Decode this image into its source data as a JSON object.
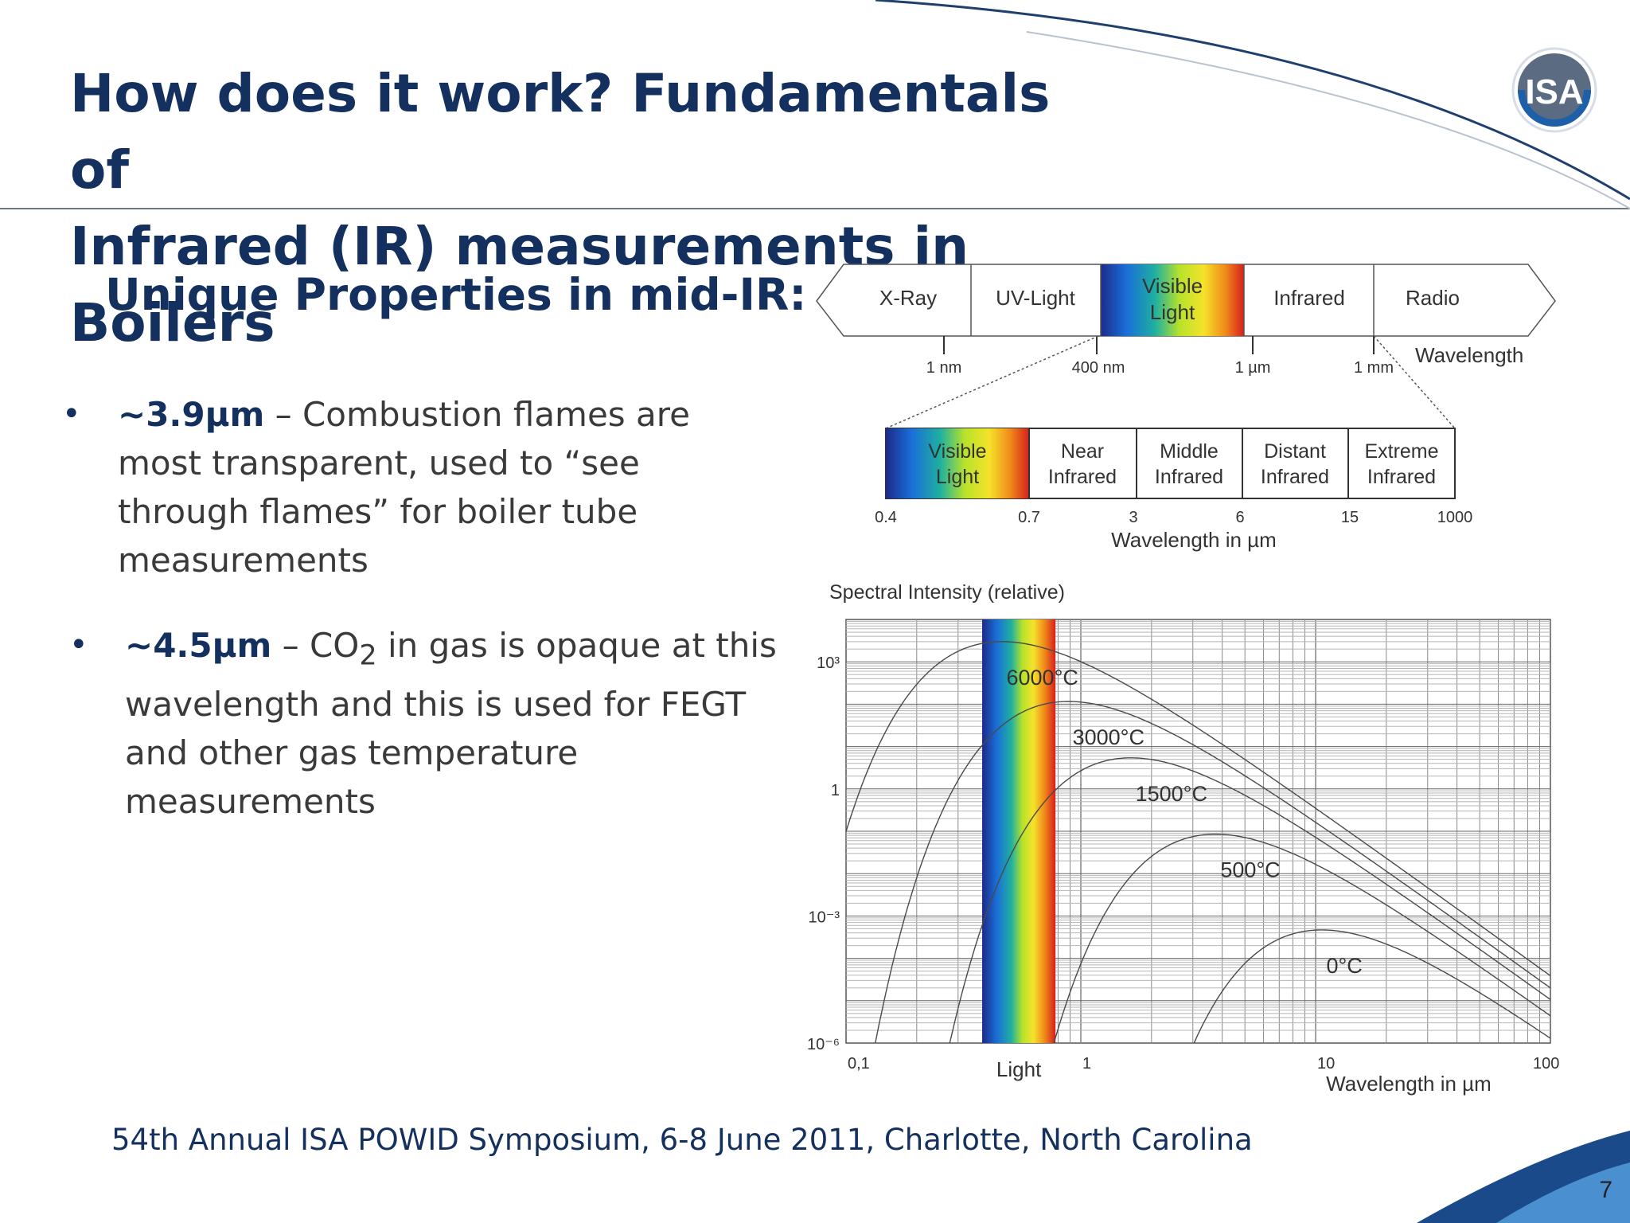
{
  "title_line1": "How does it work?  Fundamentals of",
  "title_line2": "Infrared (IR) measurements in Boilers",
  "logo": {
    "text": "ISA",
    "name": "isa-logo"
  },
  "subtitle": "Unique Properties in mid-IR:",
  "bullets": [
    {
      "marker": "•",
      "bold": "~3.9µm",
      "text": " – Combustion flames are most transparent, used to “see through flames” for boiler tube measurements"
    },
    {
      "marker": "•",
      "bold": "~4.5µm",
      "text_pre": " – CO",
      "sub": "2",
      "text_post": " in gas is opaque at this wavelength and this is used for FEGT and other gas temperature measurements"
    }
  ],
  "spectrum": {
    "bands": [
      "X-Ray",
      "UV-Light",
      "Visible Light",
      "Infrared",
      "Radio"
    ],
    "ticks": [
      "1 nm",
      "400 nm",
      "1 µm",
      "1 mm"
    ],
    "axis_label": "Wavelength",
    "sub_bands": [
      "Visible Light",
      "Near Infrared",
      "Middle Infrared",
      "Distant Infrared",
      "Extreme Infrared"
    ],
    "sub_ticks": [
      "0.4",
      "0.7",
      "3",
      "6",
      "15",
      "1000"
    ],
    "sub_axis_label": "Wavelength in µm"
  },
  "chart_data": {
    "type": "line",
    "ylabel": "Spectral Intensity (relative)",
    "xlabel": "Wavelength in µm",
    "x_scale": "log",
    "y_scale": "log",
    "xlim": [
      0.1,
      100
    ],
    "ylim": [
      1e-06,
      10000
    ],
    "x_ticks": [
      "0,1",
      "1",
      "10",
      "100"
    ],
    "y_ticks": [
      "10³",
      "1",
      "10⁻³",
      "10⁻⁶"
    ],
    "band_label": "Light",
    "grid": true,
    "series": [
      {
        "name": "6000°C",
        "peak_um": 0.46
      },
      {
        "name": "3000°C",
        "peak_um": 0.88
      },
      {
        "name": "1500°C",
        "peak_um": 1.63
      },
      {
        "name": "500°C",
        "peak_um": 3.75
      },
      {
        "name": "0°C",
        "peak_um": 10.6
      }
    ],
    "temperatures_K": [
      6273,
      3273,
      1773,
      773,
      273
    ]
  },
  "footer": "54th Annual ISA POWID Symposium, 6-8 June 2011, Charlotte, North Carolina",
  "page_number": "7",
  "colors": {
    "navy": "#14305f",
    "text": "#3a3a3a"
  }
}
